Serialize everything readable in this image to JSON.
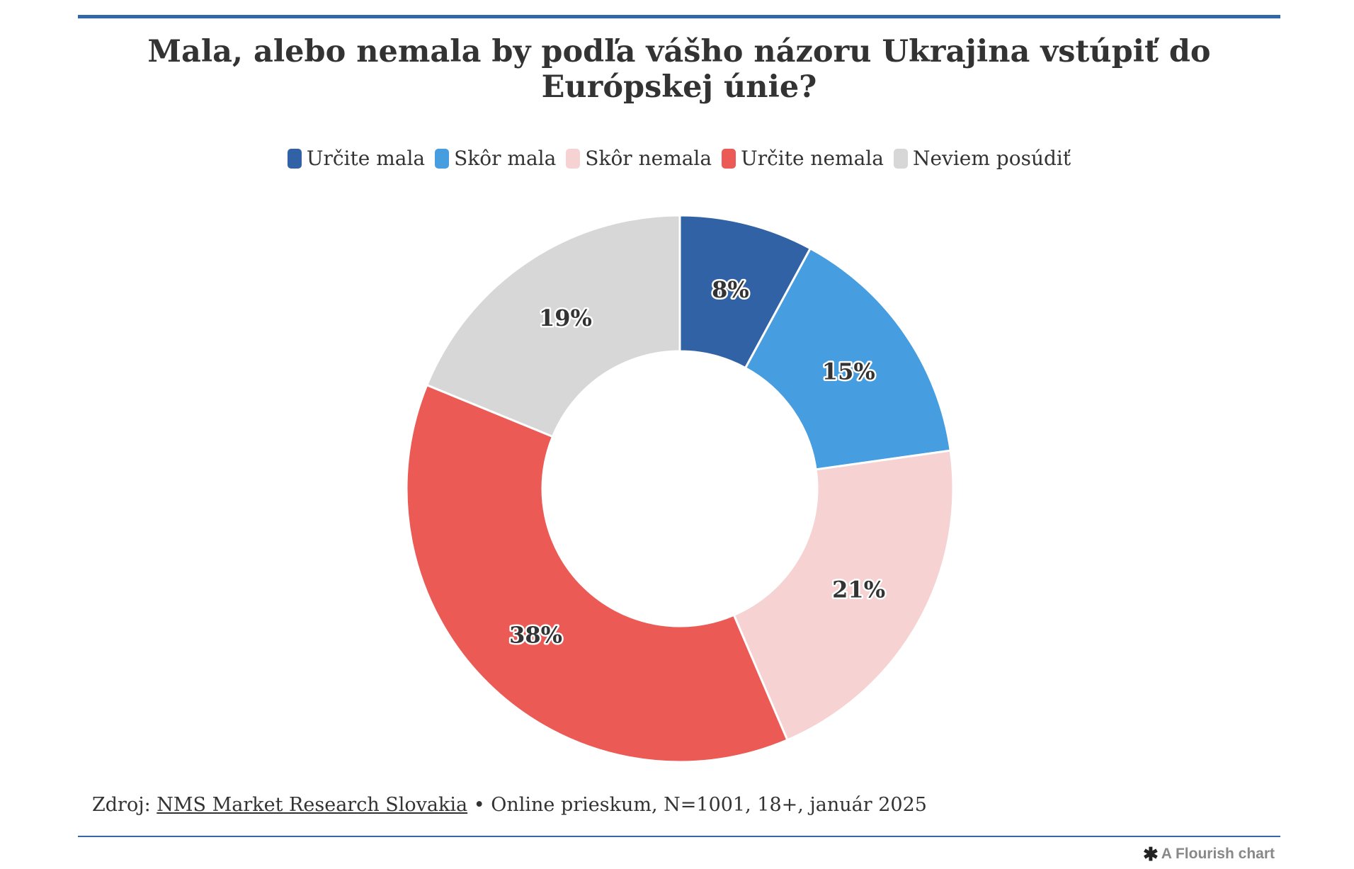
{
  "title": "Mala, alebo nemala by podľa vášho názoru Ukrajina vstúpiť do Európskej únie?",
  "legend": [
    {
      "label": "Určite mala",
      "color": "#3162a6"
    },
    {
      "label": "Skôr mala",
      "color": "#469ddf"
    },
    {
      "label": "Skôr nemala",
      "color": "#f6d2d2"
    },
    {
      "label": "Určite nemala",
      "color": "#eb5a54"
    },
    {
      "label": "Neviem posúdiť",
      "color": "#d7d7d7"
    }
  ],
  "chart_data": {
    "type": "pie",
    "variant": "donut",
    "title": "Mala, alebo nemala by podľa vášho názoru Ukrajina vstúpiť do Európskej únie?",
    "categories": [
      "Určite mala",
      "Skôr mala",
      "Skôr nemala",
      "Určite nemala",
      "Neviem posúdiť"
    ],
    "values": [
      8,
      15,
      21,
      38,
      19
    ],
    "labels": [
      "8%",
      "15%",
      "21%",
      "38%",
      "19%"
    ],
    "colors": [
      "#3162a6",
      "#469ddf",
      "#f6d2d2",
      "#eb5a54",
      "#d7d7d7"
    ],
    "legend_position": "top-center"
  },
  "footer": {
    "source_prefix": "Zdroj:",
    "source_link": "NMS Market Research Slovakia",
    "source_details": "• Online prieskum, N=1001, 18+, január 2025",
    "credit": "A Flourish chart",
    "credit_icon": "flourish-asterisk-icon"
  }
}
